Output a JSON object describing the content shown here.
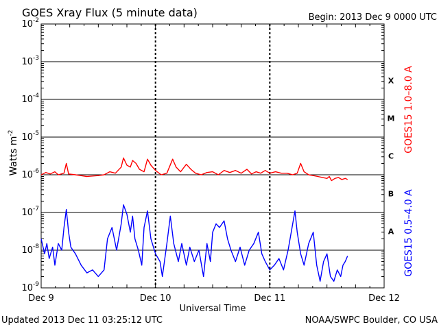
{
  "chart_data": {
    "type": "line",
    "title": "GOES Xray Flux (5 minute data)",
    "begin_label": "Begin:  2013 Dec 9 0000 UTC",
    "ylabel_main": "Watts m",
    "ylabel_sup": "-2",
    "xlabel": "Universal Time",
    "y_scale": "log",
    "ylim": [
      1e-09,
      0.01
    ],
    "y_ticks": [
      {
        "base": "10",
        "exp": "-9"
      },
      {
        "base": "10",
        "exp": "-8"
      },
      {
        "base": "10",
        "exp": "-7"
      },
      {
        "base": "10",
        "exp": "-6"
      },
      {
        "base": "10",
        "exp": "-5"
      },
      {
        "base": "10",
        "exp": "-4"
      },
      {
        "base": "10",
        "exp": "-3"
      },
      {
        "base": "10",
        "exp": "-2"
      }
    ],
    "x_ticks": [
      "Dec 9",
      "Dec 10",
      "Dec 11",
      "Dec 12"
    ],
    "xlim_days": [
      0,
      3
    ],
    "flare_classes": [
      {
        "label": "A",
        "lower": 1e-08
      },
      {
        "label": "B",
        "lower": 1e-07
      },
      {
        "label": "C",
        "lower": 1e-06
      },
      {
        "label": "M",
        "lower": 1e-05
      },
      {
        "label": "X",
        "lower": 0.0001
      }
    ],
    "grid": true,
    "series": [
      {
        "name": "GOES15 1.0–8.0 A",
        "color": "#ff0000",
        "points": [
          [
            0.0,
            1e-06
          ],
          [
            0.04,
            1.15e-06
          ],
          [
            0.08,
            1.05e-06
          ],
          [
            0.12,
            1.2e-06
          ],
          [
            0.15,
            1e-06
          ],
          [
            0.2,
            1.1e-06
          ],
          [
            0.22,
            2e-06
          ],
          [
            0.24,
            1.05e-06
          ],
          [
            0.3,
            1e-06
          ],
          [
            0.4,
            9e-07
          ],
          [
            0.5,
            9.5e-07
          ],
          [
            0.55,
            1e-06
          ],
          [
            0.6,
            1.2e-06
          ],
          [
            0.65,
            1.1e-06
          ],
          [
            0.7,
            1.6e-06
          ],
          [
            0.72,
            2.8e-06
          ],
          [
            0.75,
            1.8e-06
          ],
          [
            0.78,
            1.6e-06
          ],
          [
            0.8,
            2.4e-06
          ],
          [
            0.83,
            2e-06
          ],
          [
            0.86,
            1.4e-06
          ],
          [
            0.9,
            1.2e-06
          ],
          [
            0.93,
            2.6e-06
          ],
          [
            0.96,
            1.8e-06
          ],
          [
            1.0,
            1.3e-06
          ],
          [
            1.05,
            1e-06
          ],
          [
            1.1,
            1.1e-06
          ],
          [
            1.15,
            2.6e-06
          ],
          [
            1.18,
            1.6e-06
          ],
          [
            1.22,
            1.2e-06
          ],
          [
            1.27,
            1.9e-06
          ],
          [
            1.31,
            1.4e-06
          ],
          [
            1.35,
            1.1e-06
          ],
          [
            1.4,
            1e-06
          ],
          [
            1.45,
            1.15e-06
          ],
          [
            1.5,
            1.2e-06
          ],
          [
            1.55,
            1e-06
          ],
          [
            1.6,
            1.3e-06
          ],
          [
            1.65,
            1.15e-06
          ],
          [
            1.7,
            1.3e-06
          ],
          [
            1.75,
            1.1e-06
          ],
          [
            1.8,
            1.4e-06
          ],
          [
            1.84,
            1.05e-06
          ],
          [
            1.88,
            1.2e-06
          ],
          [
            1.92,
            1.1e-06
          ],
          [
            1.96,
            1.3e-06
          ],
          [
            2.0,
            1.1e-06
          ],
          [
            2.05,
            1.2e-06
          ],
          [
            2.1,
            1.1e-06
          ],
          [
            2.15,
            1.1e-06
          ],
          [
            2.2,
            1e-06
          ],
          [
            2.24,
            1.1e-06
          ],
          [
            2.27,
            2e-06
          ],
          [
            2.3,
            1.2e-06
          ],
          [
            2.34,
            1e-06
          ],
          [
            2.38,
            9.5e-07
          ],
          [
            2.42,
            9e-07
          ],
          [
            2.46,
            8.5e-07
          ],
          [
            2.5,
            8e-07
          ],
          [
            2.52,
            9e-07
          ],
          [
            2.54,
            7e-07
          ],
          [
            2.57,
            8e-07
          ],
          [
            2.6,
            8.5e-07
          ],
          [
            2.63,
            7.5e-07
          ],
          [
            2.66,
            8e-07
          ],
          [
            2.68,
            7.5e-07
          ]
        ]
      },
      {
        "name": "GOES15 0.5–4.0 A",
        "color": "#0000ff",
        "points": [
          [
            0.0,
            2e-08
          ],
          [
            0.03,
            8e-09
          ],
          [
            0.05,
            1.5e-08
          ],
          [
            0.07,
            6e-09
          ],
          [
            0.1,
            1.2e-08
          ],
          [
            0.12,
            4e-09
          ],
          [
            0.15,
            1.5e-08
          ],
          [
            0.18,
            1e-08
          ],
          [
            0.2,
            4e-08
          ],
          [
            0.22,
            1.2e-07
          ],
          [
            0.24,
            3e-08
          ],
          [
            0.26,
            1.2e-08
          ],
          [
            0.3,
            8e-09
          ],
          [
            0.35,
            4e-09
          ],
          [
            0.4,
            2.5e-09
          ],
          [
            0.45,
            3e-09
          ],
          [
            0.5,
            2e-09
          ],
          [
            0.55,
            3e-09
          ],
          [
            0.58,
            2e-08
          ],
          [
            0.62,
            4e-08
          ],
          [
            0.66,
            1e-08
          ],
          [
            0.7,
            5e-08
          ],
          [
            0.72,
            1.6e-07
          ],
          [
            0.75,
            9e-08
          ],
          [
            0.78,
            3e-08
          ],
          [
            0.8,
            8e-08
          ],
          [
            0.82,
            2e-08
          ],
          [
            0.85,
            1e-08
          ],
          [
            0.88,
            4e-09
          ],
          [
            0.9,
            4e-08
          ],
          [
            0.93,
            1.1e-07
          ],
          [
            0.96,
            2e-08
          ],
          [
            1.0,
            8e-09
          ],
          [
            1.04,
            5e-09
          ],
          [
            1.06,
            2e-09
          ],
          [
            1.1,
            1.5e-08
          ],
          [
            1.13,
            8e-08
          ],
          [
            1.16,
            1.5e-08
          ],
          [
            1.2,
            5e-09
          ],
          [
            1.23,
            1.5e-08
          ],
          [
            1.27,
            4e-09
          ],
          [
            1.3,
            1.2e-08
          ],
          [
            1.34,
            5e-09
          ],
          [
            1.38,
            1e-08
          ],
          [
            1.42,
            2e-09
          ],
          [
            1.45,
            1.5e-08
          ],
          [
            1.48,
            5e-09
          ],
          [
            1.5,
            3e-08
          ],
          [
            1.53,
            5e-08
          ],
          [
            1.56,
            4e-08
          ],
          [
            1.6,
            6e-08
          ],
          [
            1.63,
            2e-08
          ],
          [
            1.66,
            1e-08
          ],
          [
            1.7,
            5e-09
          ],
          [
            1.74,
            1.2e-08
          ],
          [
            1.78,
            4e-09
          ],
          [
            1.82,
            1e-08
          ],
          [
            1.86,
            1.5e-08
          ],
          [
            1.9,
            3e-08
          ],
          [
            1.93,
            8e-09
          ],
          [
            1.96,
            5e-09
          ],
          [
            2.0,
            3e-09
          ],
          [
            2.04,
            4e-09
          ],
          [
            2.08,
            6e-09
          ],
          [
            2.12,
            3e-09
          ],
          [
            2.16,
            1e-08
          ],
          [
            2.2,
            5e-08
          ],
          [
            2.22,
            1.1e-07
          ],
          [
            2.24,
            3e-08
          ],
          [
            2.27,
            8e-09
          ],
          [
            2.3,
            4e-09
          ],
          [
            2.34,
            1.5e-08
          ],
          [
            2.38,
            3e-08
          ],
          [
            2.41,
            4e-09
          ],
          [
            2.44,
            1.5e-09
          ],
          [
            2.47,
            5e-09
          ],
          [
            2.5,
            8e-09
          ],
          [
            2.53,
            2e-09
          ],
          [
            2.56,
            1.5e-09
          ],
          [
            2.59,
            3e-09
          ],
          [
            2.62,
            2e-09
          ],
          [
            2.64,
            4e-09
          ],
          [
            2.66,
            5e-09
          ],
          [
            2.68,
            7e-09
          ]
        ]
      }
    ]
  },
  "footer": {
    "updated": "Updated 2013 Dec 11 03:25:12 UTC",
    "credit": "NOAA/SWPC Boulder, CO USA"
  }
}
